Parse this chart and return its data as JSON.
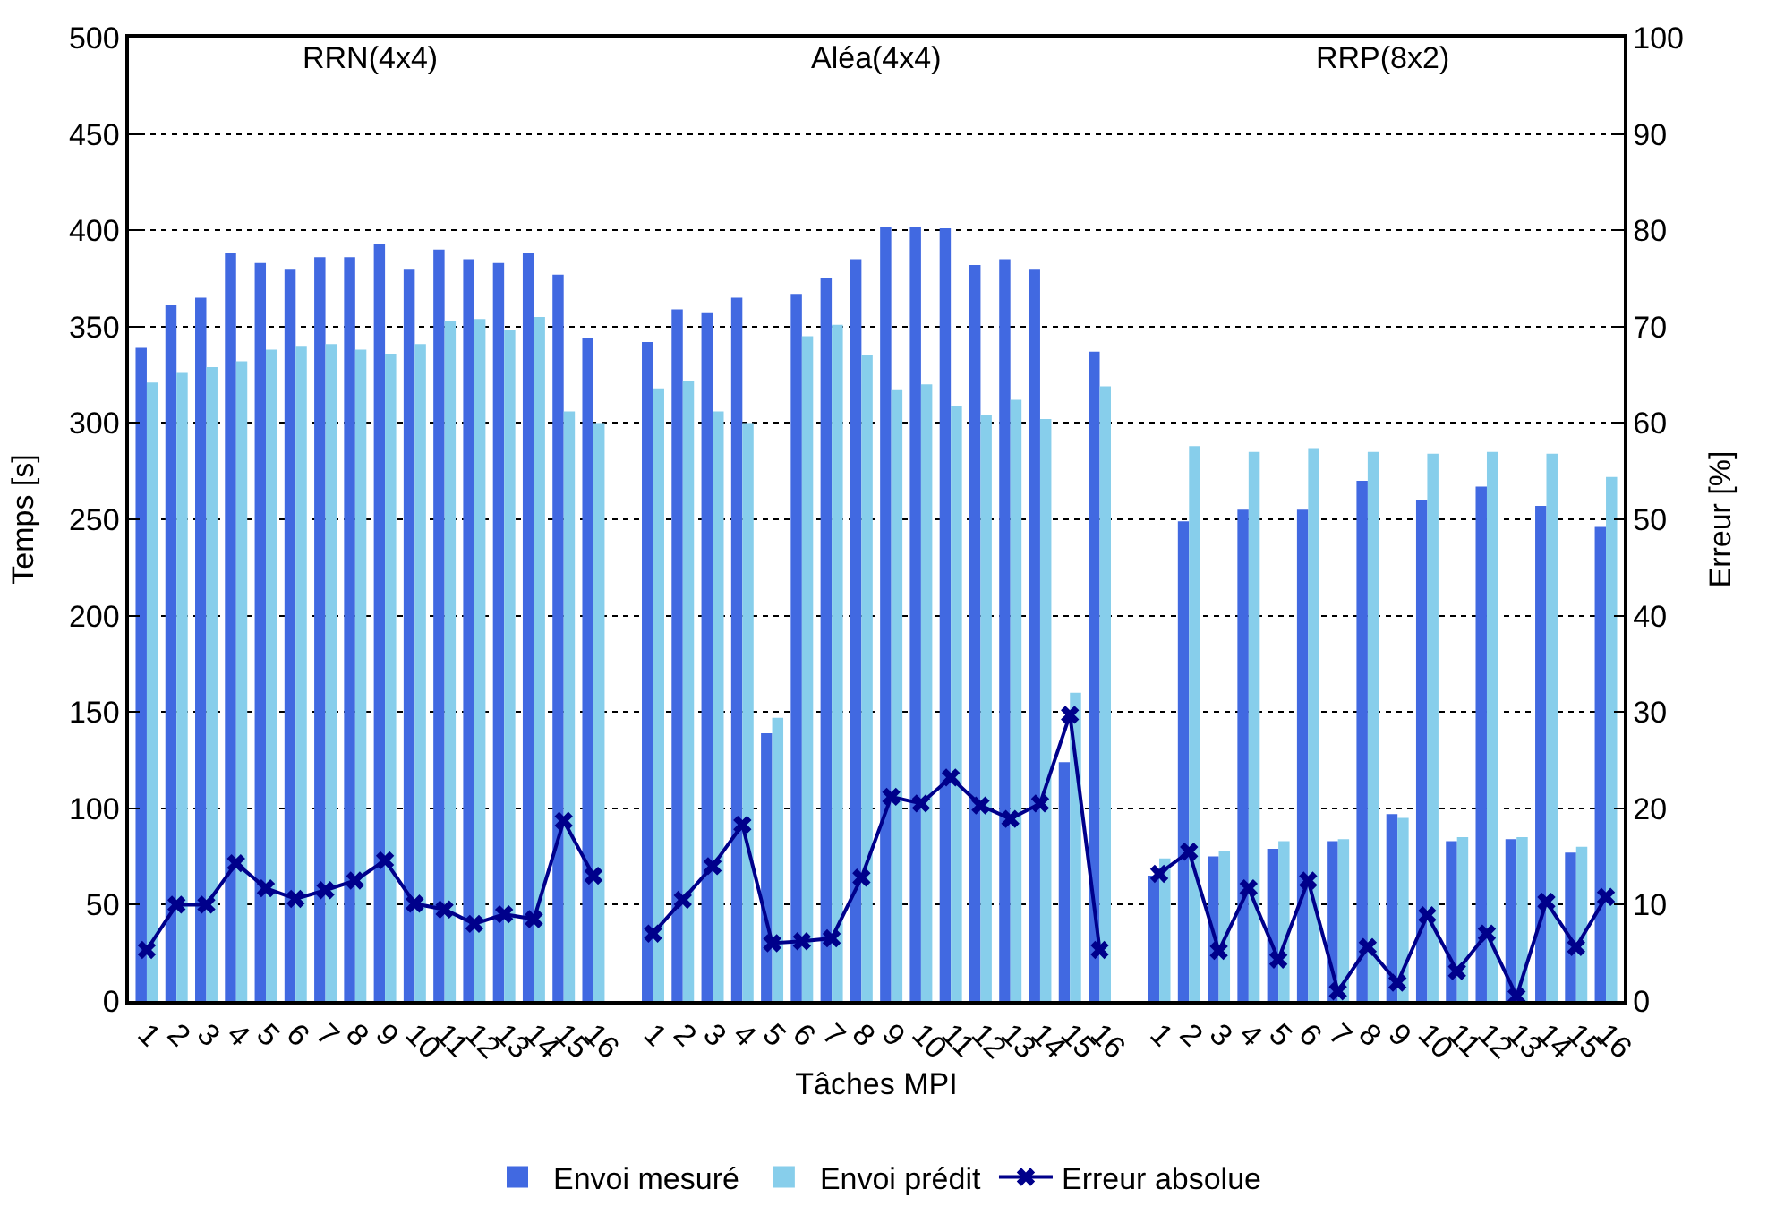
{
  "chart_data": {
    "type": "bar",
    "xlabel": "Tâches MPI",
    "ylabel": "Temps [s]",
    "y2label": "Erreur [%]",
    "categories": [
      "1",
      "2",
      "3",
      "4",
      "5",
      "6",
      "7",
      "8",
      "9",
      "10",
      "11",
      "12",
      "13",
      "14",
      "15",
      "16",
      null,
      "1",
      "2",
      "3",
      "4",
      "5",
      "6",
      "7",
      "8",
      "9",
      "10",
      "11",
      "12",
      "13",
      "14",
      "15",
      "16",
      null,
      "1",
      "2",
      "3",
      "4",
      "5",
      "6",
      "7",
      "8",
      "9",
      "10",
      "11",
      "12",
      "13",
      "14",
      "15",
      "16"
    ],
    "series": [
      {
        "name": "Envoi mesuré",
        "color": "#4169e1",
        "values": [
          339,
          361,
          365,
          388,
          383,
          380,
          386,
          386,
          393,
          380,
          390,
          385,
          383,
          388,
          377,
          344,
          null,
          342,
          359,
          357,
          365,
          139,
          367,
          375,
          385,
          402,
          402,
          401,
          382,
          385,
          380,
          124,
          337,
          null,
          65,
          249,
          75,
          255,
          79,
          255,
          83,
          270,
          97,
          260,
          83,
          267,
          84,
          257,
          77,
          246
        ]
      },
      {
        "name": "Envoi prédit",
        "color": "#87ceeb",
        "values": [
          321,
          326,
          329,
          332,
          338,
          340,
          341,
          338,
          336,
          341,
          353,
          354,
          348,
          355,
          306,
          300,
          null,
          318,
          322,
          306,
          300,
          147,
          345,
          351,
          335,
          317,
          320,
          309,
          304,
          312,
          302,
          160,
          319,
          null,
          74,
          288,
          78,
          285,
          83,
          287,
          84,
          285,
          95,
          284,
          85,
          285,
          85,
          284,
          80,
          272
        ]
      },
      {
        "name": "Erreur absolue",
        "color": "#00008b",
        "type": "line",
        "axis": "y2",
        "marker": "cross",
        "values": [
          5.3,
          10,
          10,
          14.3,
          11.7,
          10.6,
          11.5,
          12.5,
          14.6,
          10.1,
          9.5,
          8,
          9,
          8.5,
          18.7,
          13,
          null,
          7,
          10.5,
          14,
          18.3,
          6,
          6.2,
          6.5,
          12.8,
          21.2,
          20.5,
          23.2,
          20.3,
          18.9,
          20.5,
          29.7,
          5.3,
          null,
          13.2,
          15.5,
          5.2,
          11.7,
          4.3,
          12.5,
          1,
          5.6,
          1.9,
          8.9,
          3.1,
          7,
          0.5,
          10.3,
          5.6,
          10.8
        ]
      }
    ],
    "ylim": [
      0,
      500
    ],
    "yticks": [
      0,
      50,
      100,
      150,
      200,
      250,
      300,
      350,
      400,
      450,
      500
    ],
    "y2lim": [
      0,
      100
    ],
    "y2ticks": [
      0,
      10,
      20,
      30,
      40,
      50,
      60,
      70,
      80,
      90,
      100
    ],
    "grid": "y",
    "legend": "bottom",
    "annotations": [
      "RRN(4x4)",
      "Aléa(4x4)",
      "RRP(8x2)"
    ]
  }
}
